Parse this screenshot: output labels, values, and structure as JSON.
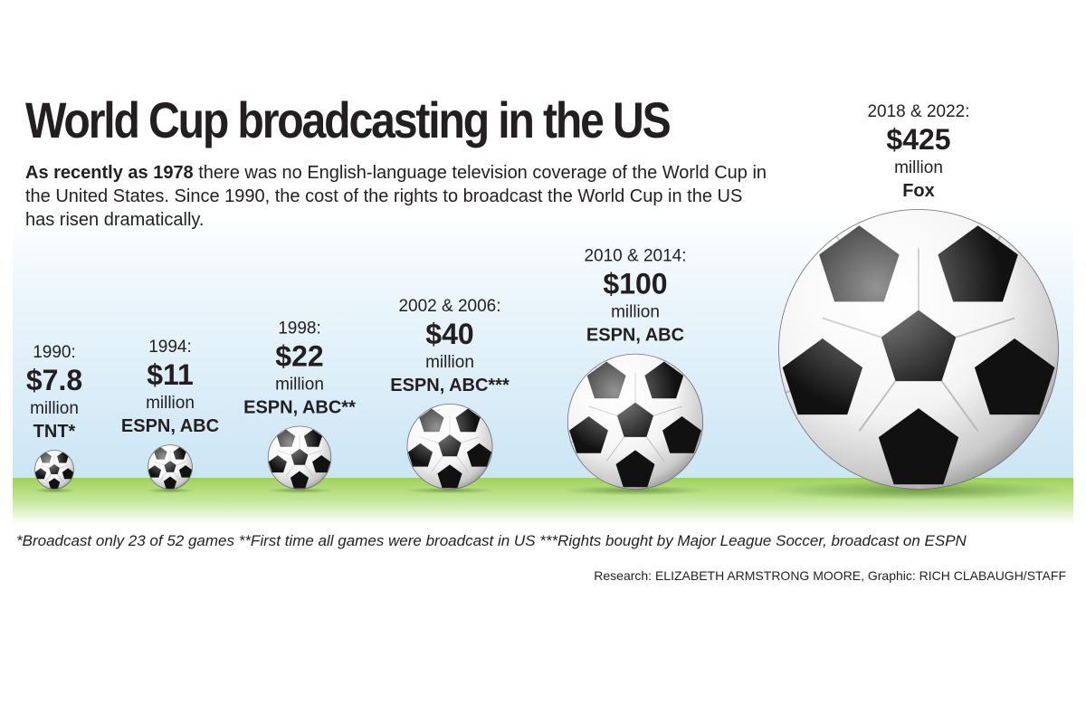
{
  "title": "World Cup broadcasting in the US",
  "intro": {
    "lead": "As recently as 1978",
    "text": " there was no English-language television coverage of the World Cup in the United States. Since 1990, the cost of the rights to broadcast the World Cup in the US has risen dramatically."
  },
  "footnotes": "*Broadcast only 23 of 52 games  **First time all games were broadcast in US  ***Rights bought by Major League Soccer, broadcast on ESPN",
  "credit": "Research: ELIZABETH ARMSTRONG MOORE, Graphic: RICH CLABAUGH/STAFF",
  "colors": {
    "text": "#231f20",
    "ball_white": "#ffffff",
    "ball_patch": "#111111",
    "grass": "#9ed25a",
    "sky": "#cbe5f4"
  },
  "chart_data": {
    "type": "bubble",
    "unit": "million",
    "marker": "soccer-ball",
    "categories": [
      "1990:",
      "1994:",
      "1998:",
      "2002 & 2006:",
      "2010 & 2014:",
      "2018 & 2022:"
    ],
    "values": [
      7.8,
      11,
      22,
      40,
      100,
      425
    ],
    "value_labels": [
      "$7.8",
      "$11",
      "$22",
      "$40",
      "$100",
      "$425"
    ],
    "broadcasters": [
      "TNT*",
      "ESPN, ABC",
      "ESPN, ABC**",
      "ESPN, ABC***",
      "ESPN, ABC",
      "Fox"
    ]
  }
}
